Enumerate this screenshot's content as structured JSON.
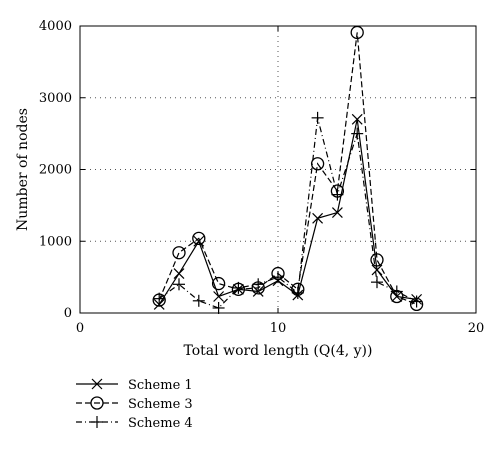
{
  "chart_data": {
    "type": "line",
    "title": "",
    "xlabel": "Total word length (Q(4, y))",
    "ylabel": "Number of nodes",
    "xlim": [
      0,
      20
    ],
    "ylim": [
      0,
      4000
    ],
    "x_ticks": [
      0,
      10,
      20
    ],
    "y_ticks": [
      0,
      1000,
      2000,
      3000,
      4000
    ],
    "x_tick_labels": [
      "0",
      "10",
      "20"
    ],
    "y_tick_labels": [
      "0",
      "1000",
      "2000",
      "3000",
      "4000"
    ],
    "grid": "dotted at major ticks",
    "legend_position": "below plot, left",
    "series": [
      {
        "name": "Scheme 1",
        "line_style": "solid",
        "marker": "x",
        "x": [
          4,
          5,
          6,
          7,
          8,
          9,
          10,
          11,
          12,
          13,
          14,
          15,
          16,
          17
        ],
        "y": [
          120,
          550,
          1000,
          230,
          330,
          300,
          450,
          250,
          1320,
          1400,
          2700,
          600,
          230,
          190
        ]
      },
      {
        "name": "Scheme 3",
        "line_style": "dashed",
        "marker": "circle",
        "x": [
          4,
          5,
          6,
          7,
          8,
          9,
          10,
          11,
          12,
          13,
          14,
          15,
          16,
          17
        ],
        "y": [
          180,
          840,
          1040,
          410,
          330,
          350,
          550,
          330,
          2080,
          1700,
          3910,
          740,
          230,
          120
        ]
      },
      {
        "name": "Scheme 4",
        "line_style": "dashdot",
        "marker": "plus",
        "x": [
          4,
          5,
          6,
          7,
          8,
          9,
          10,
          11,
          12,
          13,
          14,
          15,
          16,
          17
        ],
        "y": [
          200,
          400,
          170,
          70,
          350,
          400,
          500,
          280,
          2720,
          1650,
          2500,
          430,
          300,
          160
        ]
      }
    ]
  }
}
